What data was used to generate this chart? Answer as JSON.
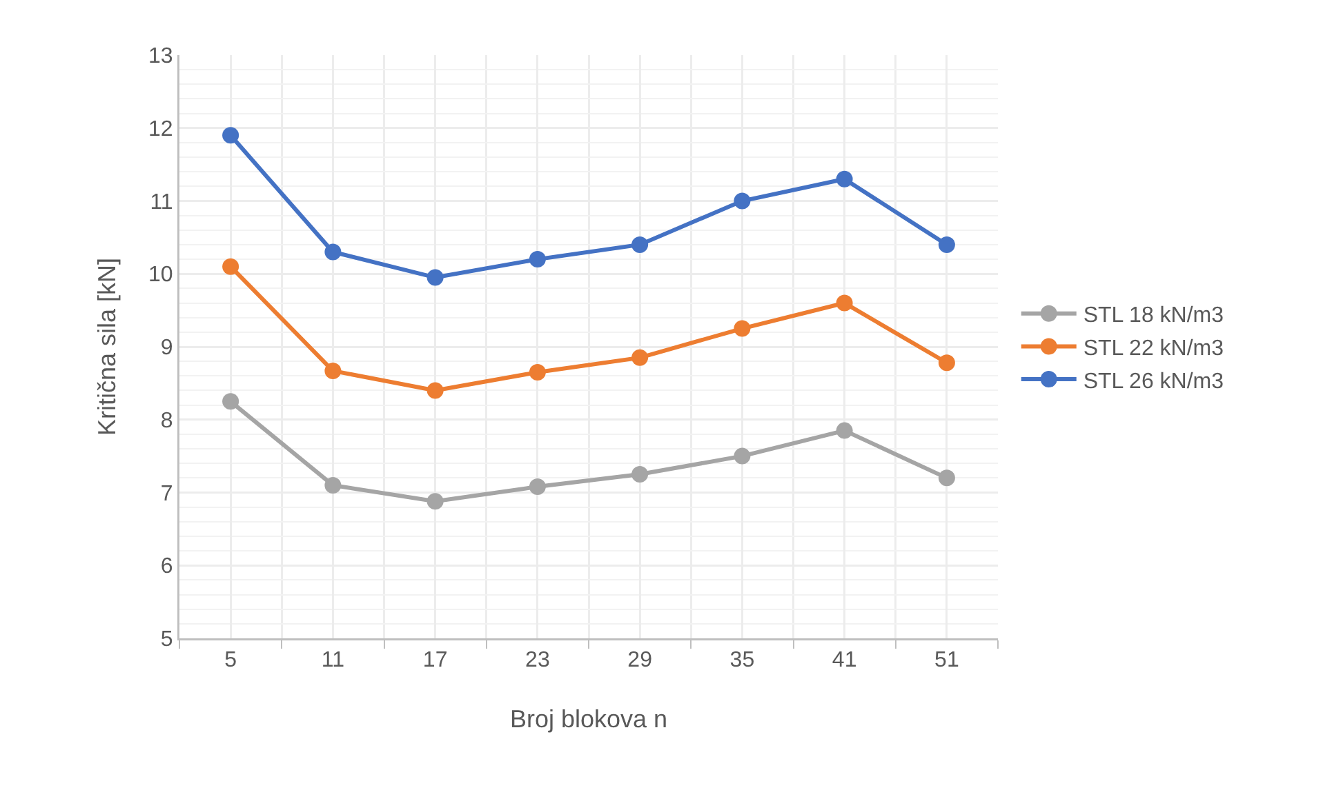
{
  "chart_data": {
    "type": "line",
    "xlabel": "Broj blokova n",
    "ylabel": "Kritična sila [kN]",
    "categories": [
      "5",
      "11",
      "17",
      "23",
      "29",
      "35",
      "41",
      "51"
    ],
    "series": [
      {
        "name": "STL 18 kN/m3",
        "color": "#a5a5a5",
        "values": [
          8.25,
          7.1,
          6.88,
          7.08,
          7.25,
          7.5,
          7.85,
          7.2
        ]
      },
      {
        "name": "STL 22 kN/m3",
        "color": "#ed7d31",
        "values": [
          10.1,
          8.67,
          8.4,
          8.65,
          8.85,
          9.25,
          9.6,
          8.78
        ]
      },
      {
        "name": "STL 26 kN/m3",
        "color": "#4472c4",
        "values": [
          11.9,
          10.3,
          9.95,
          10.2,
          10.4,
          11.0,
          11.3,
          10.4
        ]
      }
    ],
    "ylim": [
      5,
      13
    ],
    "yticks": [
      5,
      6,
      7,
      8,
      9,
      10,
      11,
      12,
      13
    ],
    "grid": true,
    "legend": "right",
    "marker": "circle",
    "line_style": "solid"
  }
}
